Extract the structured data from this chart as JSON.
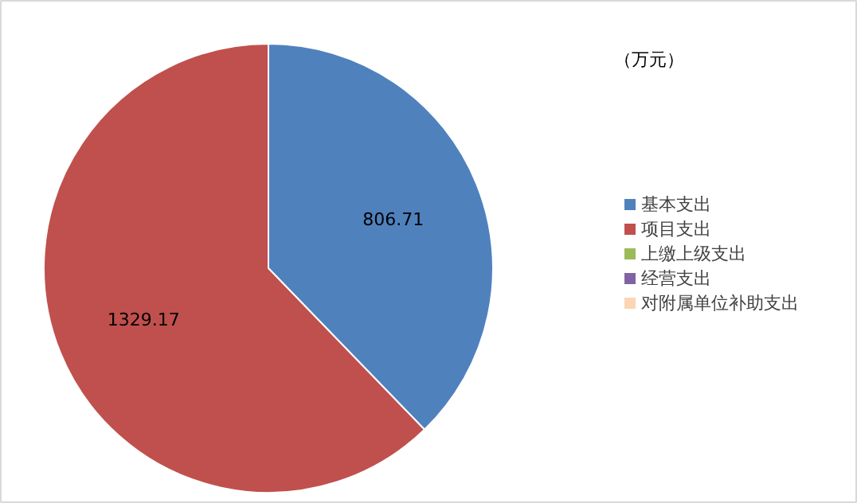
{
  "chart_data": {
    "type": "pie",
    "categories": [
      "基本支出",
      "项目支出",
      "上缴上级支出",
      "经营支出",
      "对附属单位补助支出"
    ],
    "values": [
      806.71,
      1329.17,
      0,
      0,
      0
    ],
    "colors": [
      "#4f81bd",
      "#c0504d",
      "#9bbb59",
      "#8064a2",
      "#fcd5b5"
    ],
    "annotations": [
      "（万元）"
    ],
    "data_labels": true,
    "legend": "right"
  }
}
